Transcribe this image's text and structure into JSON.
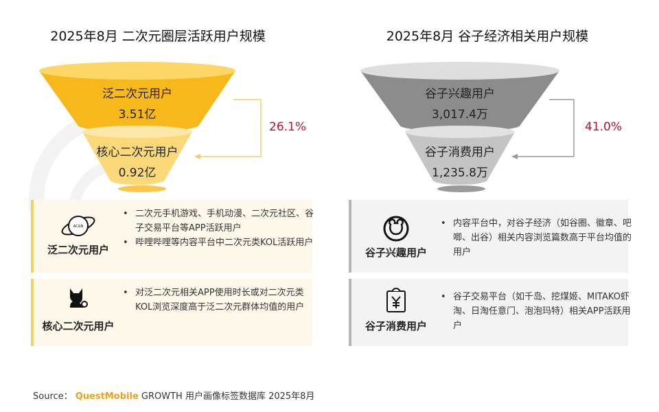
{
  "watermark": "QUESTMOBILE",
  "left": {
    "title": "2025年8月 二次元圈层活跃用户规模",
    "colors": {
      "top": "#f7b81c",
      "bottom": "#fbd878",
      "connector": "#f1cf6a"
    },
    "funnel": [
      {
        "label": "泛二次元用户",
        "value": "3.51亿"
      },
      {
        "label": "核心二次元用户",
        "value": "0.92亿"
      }
    ],
    "conversion": "26.1%",
    "boxes": [
      {
        "icon": "planet-acgn-icon",
        "icon_text": "ACGN",
        "label": "泛二次元用户",
        "bullets": [
          "二次元手机游戏、手机动漫、二次元社区、谷子交易平台等APP活跃用户",
          "哔哩哔哩等内容平台中二次元类KOL活跃用户"
        ]
      },
      {
        "icon": "cat-icon",
        "label": "核心二次元用户",
        "bullets": [
          "对泛二次元相关APP使用时长或对二次元类KOL浏览深度高于泛二次元群体均值的用户"
        ]
      }
    ]
  },
  "right": {
    "title": "2025年8月 谷子经济相关用户规模",
    "colors": {
      "top": "#8c8c8c",
      "bottom": "#c4c4c4",
      "connector": "#9a9a9a"
    },
    "funnel": [
      {
        "label": "谷子兴趣用户",
        "value": "3,017.4万"
      },
      {
        "label": "谷子消费用户",
        "value": "1,235.8万"
      }
    ],
    "conversion": "41.0%",
    "boxes": [
      {
        "icon": "bear-face-icon",
        "label": "谷子兴趣用户",
        "bullets": [
          "内容平台中，对谷子经济（如谷圈、徽章、吧唧、出谷）相关内容浏览篇数高于平台均值的用户"
        ]
      },
      {
        "icon": "yen-clipboard-icon",
        "label": "谷子消费用户",
        "bullets": [
          "谷子交易平台（如千岛、挖煤姬、MITAKO虾淘、日淘任意门、泡泡玛特）相关APP活跃用户"
        ]
      }
    ]
  },
  "source": {
    "prefix": "Source：",
    "brand": "QuestMobile",
    "text": "GROWTH 用户画像标签数据库 2025年8月"
  }
}
